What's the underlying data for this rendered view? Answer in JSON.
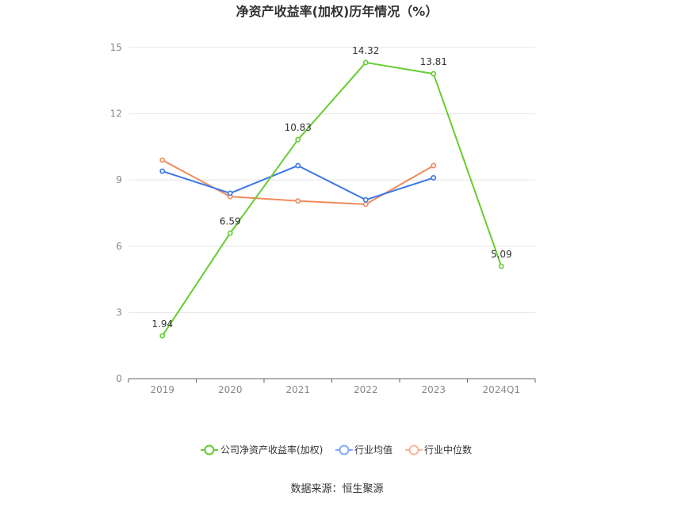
{
  "chart_data": {
    "type": "line",
    "title": "净资产收益率(加权)历年情况（%）",
    "categories": [
      "2019",
      "2020",
      "2021",
      "2022",
      "2023",
      "2024Q1"
    ],
    "ylim": [
      0,
      15
    ],
    "yticks": [
      0,
      3,
      6,
      9,
      12,
      15
    ],
    "grid": true,
    "legend_position": "bottom-center",
    "series": [
      {
        "name": "公司净资产收益率(加权)",
        "color": "#66cc33",
        "values": [
          1.94,
          6.59,
          10.83,
          14.32,
          13.81,
          5.09
        ],
        "labels": [
          "1.94",
          "6.59",
          "10.83",
          "14.32",
          "13.81",
          "5.09"
        ]
      },
      {
        "name": "行业均值",
        "color": "#3b78e7",
        "values": [
          9.4,
          8.4,
          9.65,
          8.1,
          9.1,
          null
        ]
      },
      {
        "name": "行业中位数",
        "color": "#f08a5d",
        "values": [
          9.9,
          8.25,
          8.05,
          7.9,
          9.65,
          null
        ]
      }
    ]
  },
  "source": "数据来源：恒生聚源"
}
